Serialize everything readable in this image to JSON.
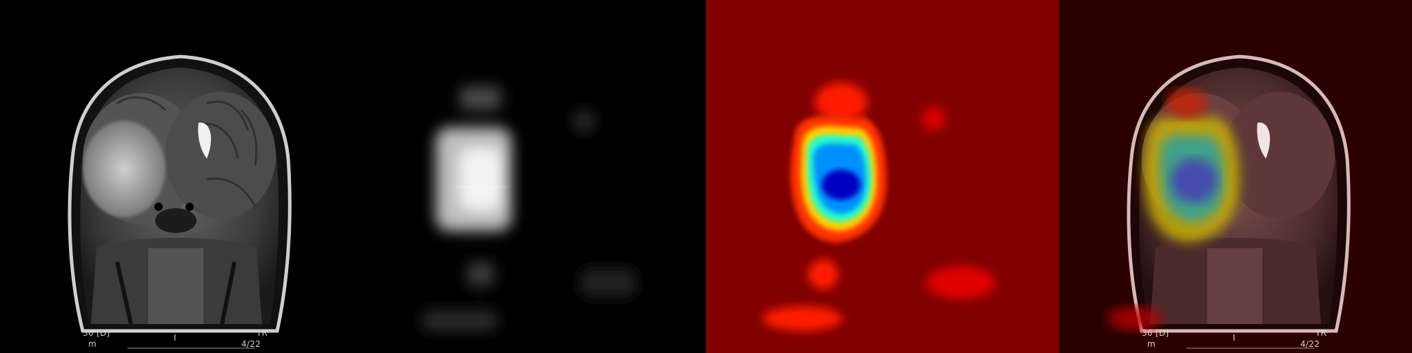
{
  "panels": [
    {
      "label": "original-mri"
    },
    {
      "label": "grayscale-attention-map"
    },
    {
      "label": "jet-heatmap"
    },
    {
      "label": "heatmap-overlay"
    }
  ],
  "scan_overlay": {
    "left_code": "36 [D]",
    "left_unit": "m",
    "center_letter": "I",
    "right_code": "TR",
    "slice_index": "4/22"
  },
  "colors": {
    "background": "#000000",
    "jet_base": "#800000",
    "overlay_tint": "#3b0000"
  }
}
